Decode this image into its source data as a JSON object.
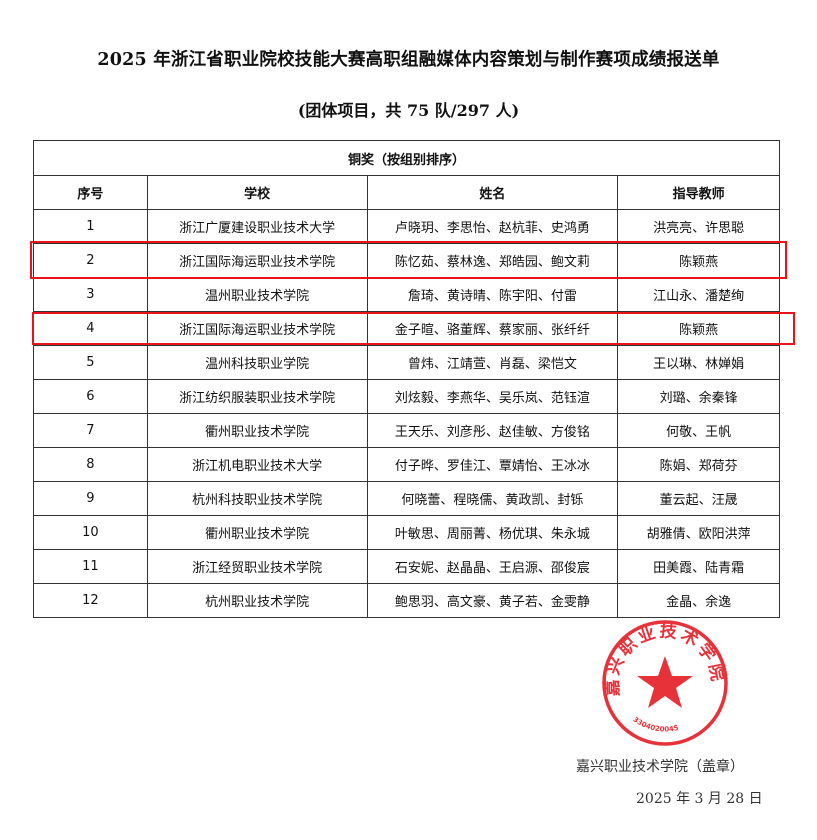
{
  "title": "2025 年浙江省职业院校技能大赛高职组融媒体内容策划与制作赛项成绩报送单",
  "subtitle": "(团体项目，共 75 队/297 人)",
  "table": {
    "caption": "铜奖（按组别排序）",
    "headers": [
      "序号",
      "学校",
      "姓名",
      "指导教师"
    ],
    "rows": [
      [
        "1",
        "浙江广厦建设职业技术大学",
        "卢晓玥、李思怡、赵杭菲、史鸿勇",
        "洪亮亮、许思聪"
      ],
      [
        "2",
        "浙江国际海运职业技术学院",
        "陈忆茹、蔡林逸、郑皓园、鲍文莉",
        "陈颖燕"
      ],
      [
        "3",
        "温州职业技术学院",
        "詹琦、黄诗晴、陈宇阳、付雷",
        "江山永、潘楚绚"
      ],
      [
        "4",
        "浙江国际海运职业技术学院",
        "金子暄、骆董辉、蔡家丽、张纤纤",
        "陈颖燕"
      ],
      [
        "5",
        "温州科技职业学院",
        "曾炜、江靖萱、肖磊、梁恺文",
        "王以琳、林婵娟"
      ],
      [
        "6",
        "浙江纺织服装职业技术学院",
        "刘炫毅、李燕华、吴乐岚、范钰渲",
        "刘璐、余秦锋"
      ],
      [
        "7",
        "衢州职业技术学院",
        "王天乐、刘彦彤、赵佳敏、方俊铭",
        "何敬、王帆"
      ],
      [
        "8",
        "浙江机电职业技术大学",
        "付子晔、罗佳江、覃婧怡、王冰冰",
        "陈娟、郑荷芬"
      ],
      [
        "9",
        "杭州科技职业技术学院",
        "何晓蕾、程晓儒、黄政凯、封铄",
        "董云起、汪晟"
      ],
      [
        "10",
        "衢州职业技术学院",
        "叶敏思、周丽菁、杨优琪、朱永城",
        "胡雅倩、欧阳洪萍"
      ],
      [
        "11",
        "浙江经贸职业技术学院",
        "石安妮、赵晶晶、王启源、邵俊宸",
        "田美霞、陆青霜"
      ],
      [
        "12",
        "杭州职业技术学院",
        "鲍思羽、高文豪、黄子若、金雯静",
        "金晶、余逸"
      ]
    ]
  },
  "highlight_color": "#e8141c",
  "signature": {
    "org": "嘉兴职业技术学院（盖章）",
    "date": "2025 年 3 月 28 日"
  },
  "stamp": {
    "text": "嘉兴职业技术学院",
    "code": "3304020045",
    "color": "#e8323a"
  }
}
